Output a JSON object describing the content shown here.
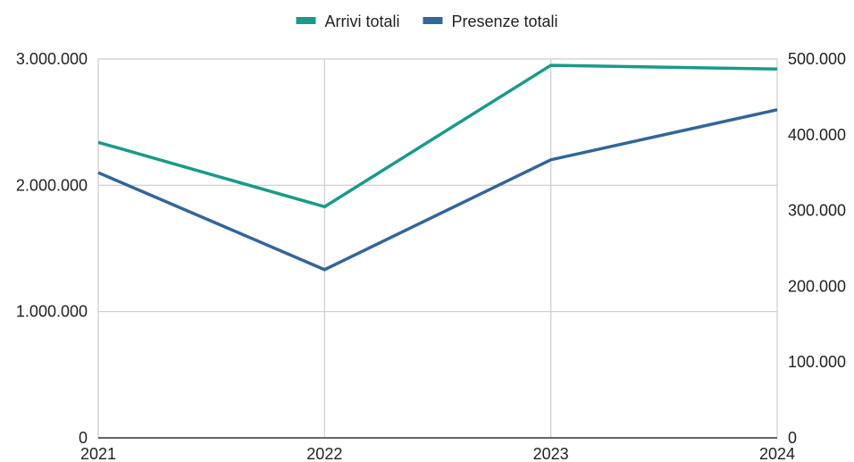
{
  "chart_data": {
    "type": "line",
    "title": "",
    "xlabel": "",
    "ylabel": "",
    "y2label": "",
    "categories": [
      "2021",
      "2022",
      "2023",
      "2024"
    ],
    "series": [
      {
        "name": "Arrivi totali",
        "axis": "left",
        "color": "#1a9a8a",
        "values": [
          2340000,
          1830000,
          2950000,
          2920000
        ]
      },
      {
        "name": "Presenze totali",
        "axis": "right",
        "color": "#336699",
        "values": [
          350000,
          222000,
          367000,
          433000
        ]
      }
    ],
    "y_left": {
      "min": 0,
      "max": 3000000,
      "ticks": [
        0,
        1000000,
        2000000,
        3000000
      ],
      "tick_labels": [
        "0",
        "1.000.000",
        "2.000.000",
        "3.000.000"
      ]
    },
    "y_right": {
      "min": 0,
      "max": 500000,
      "ticks": [
        0,
        100000,
        200000,
        300000,
        400000,
        500000
      ],
      "tick_labels": [
        "0",
        "100.000",
        "200.000",
        "300.000",
        "400.000",
        "500.000"
      ]
    },
    "grid": true,
    "legend": "top-center"
  }
}
